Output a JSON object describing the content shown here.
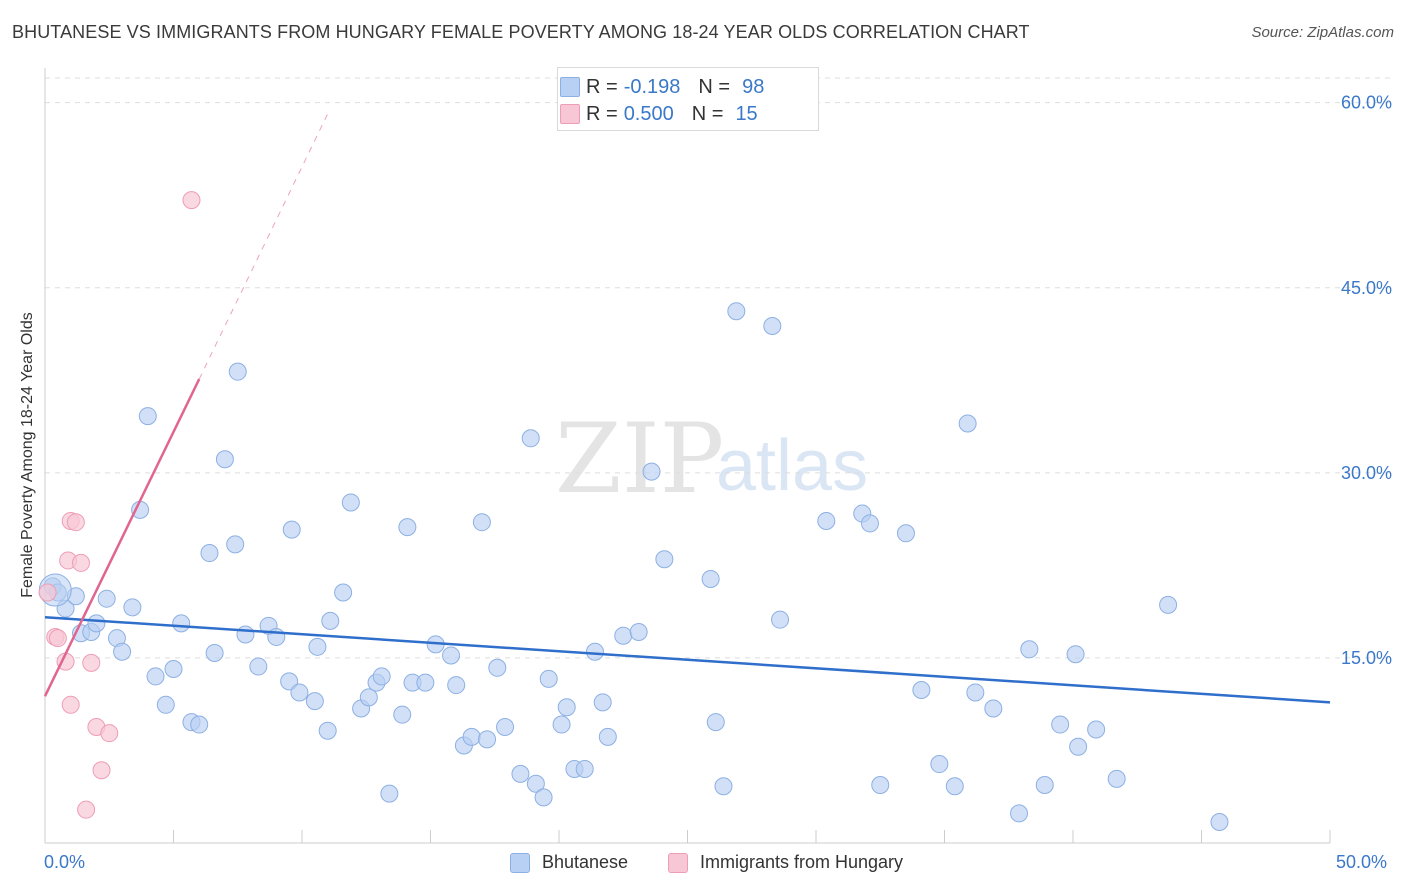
{
  "title": "BHUTANESE VS IMMIGRANTS FROM HUNGARY FEMALE POVERTY AMONG 18-24 YEAR OLDS CORRELATION CHART",
  "source": "Source: ZipAtlas.com",
  "watermark": {
    "zip": "ZIP",
    "atlas": "atlas"
  },
  "legend_top": {
    "rows": [
      {
        "r_label": "R =",
        "r_value": "-0.198",
        "n_label": "N =",
        "n_value": "98"
      },
      {
        "r_label": "R =",
        "r_value": "0.500",
        "n_label": "N =",
        "n_value": "15"
      }
    ]
  },
  "legend_bottom": {
    "series1": "Bhutanese",
    "series2": "Immigrants from Hungary"
  },
  "x_axis": {
    "min_label": "0.0%",
    "max_label": "50.0%"
  },
  "colors": {
    "blue_fill": "#b8d0f3",
    "blue_stroke": "#8db0e3",
    "blue_line": "#2f6fcb",
    "pink_fill": "#f8c7d6",
    "pink_stroke": "#ee9db6",
    "pink_line": "#e0658f",
    "tick_text": "#3a78c9",
    "grid": "#dddddd"
  },
  "chart_data": {
    "type": "scatter",
    "title": "BHUTANESE VS IMMIGRANTS FROM HUNGARY FEMALE POVERTY AMONG 18-24 YEAR OLDS CORRELATION CHART",
    "xlabel": "",
    "ylabel": "Female Poverty Among 18-24 Year Olds",
    "xlim": [
      0,
      50
    ],
    "ylim": [
      0,
      62
    ],
    "y_ticks": [
      15,
      30,
      45,
      60
    ],
    "y_tick_labels": [
      "15.0%",
      "30.0%",
      "45.0%",
      "60.0%"
    ],
    "series": [
      {
        "name": "Bhutanese",
        "r": -0.198,
        "n": 98,
        "trend": {
          "x0": 0,
          "y0": 18.3,
          "x1": 50,
          "y1": 11.4
        },
        "points": [
          [
            0.3,
            20.8
          ],
          [
            0.5,
            20.3
          ],
          [
            0.8,
            19.0
          ],
          [
            1.2,
            20.0
          ],
          [
            1.4,
            17.0
          ],
          [
            1.8,
            17.1
          ],
          [
            2.0,
            17.8
          ],
          [
            2.4,
            19.8
          ],
          [
            2.8,
            16.6
          ],
          [
            3.0,
            15.5
          ],
          [
            3.4,
            19.1
          ],
          [
            3.7,
            27.0
          ],
          [
            4.0,
            34.6
          ],
          [
            4.3,
            13.5
          ],
          [
            4.7,
            11.2
          ],
          [
            5.0,
            14.1
          ],
          [
            5.3,
            17.8
          ],
          [
            5.7,
            9.8
          ],
          [
            6.0,
            9.6
          ],
          [
            6.4,
            23.5
          ],
          [
            6.6,
            15.4
          ],
          [
            7.0,
            31.1
          ],
          [
            7.4,
            24.2
          ],
          [
            7.5,
            38.2
          ],
          [
            7.8,
            16.9
          ],
          [
            8.3,
            14.3
          ],
          [
            8.7,
            17.6
          ],
          [
            9.0,
            16.7
          ],
          [
            9.5,
            13.1
          ],
          [
            9.6,
            25.4
          ],
          [
            9.9,
            12.2
          ],
          [
            10.5,
            11.5
          ],
          [
            10.6,
            15.9
          ],
          [
            11.0,
            9.1
          ],
          [
            11.1,
            18.0
          ],
          [
            11.6,
            20.3
          ],
          [
            11.9,
            27.6
          ],
          [
            12.3,
            10.9
          ],
          [
            12.6,
            11.8
          ],
          [
            12.9,
            13.0
          ],
          [
            13.1,
            13.5
          ],
          [
            13.4,
            4.0
          ],
          [
            13.9,
            10.4
          ],
          [
            14.1,
            25.6
          ],
          [
            14.3,
            13.0
          ],
          [
            14.8,
            13.0
          ],
          [
            15.2,
            16.1
          ],
          [
            15.8,
            15.2
          ],
          [
            16.0,
            12.8
          ],
          [
            16.3,
            7.9
          ],
          [
            16.6,
            8.6
          ],
          [
            17.0,
            26.0
          ],
          [
            17.2,
            8.4
          ],
          [
            17.6,
            14.2
          ],
          [
            17.9,
            9.4
          ],
          [
            18.5,
            5.6
          ],
          [
            18.9,
            32.8
          ],
          [
            19.1,
            4.8
          ],
          [
            19.4,
            3.7
          ],
          [
            19.6,
            13.3
          ],
          [
            20.1,
            9.6
          ],
          [
            20.3,
            11.0
          ],
          [
            20.6,
            6.0
          ],
          [
            21.0,
            6.0
          ],
          [
            21.4,
            15.5
          ],
          [
            21.7,
            11.4
          ],
          [
            21.9,
            8.6
          ],
          [
            22.5,
            16.8
          ],
          [
            23.1,
            17.1
          ],
          [
            23.6,
            30.1
          ],
          [
            24.1,
            23.0
          ],
          [
            25.9,
            21.4
          ],
          [
            26.1,
            9.8
          ],
          [
            26.4,
            4.6
          ],
          [
            26.9,
            43.1
          ],
          [
            28.3,
            41.9
          ],
          [
            28.6,
            18.1
          ],
          [
            30.4,
            26.1
          ],
          [
            31.8,
            26.7
          ],
          [
            32.1,
            25.9
          ],
          [
            32.5,
            4.7
          ],
          [
            33.5,
            25.1
          ],
          [
            34.1,
            12.4
          ],
          [
            34.8,
            6.4
          ],
          [
            35.4,
            4.6
          ],
          [
            35.9,
            34.0
          ],
          [
            36.2,
            12.2
          ],
          [
            36.9,
            10.9
          ],
          [
            37.9,
            2.4
          ],
          [
            38.3,
            15.7
          ],
          [
            38.9,
            4.7
          ],
          [
            39.5,
            9.6
          ],
          [
            40.1,
            15.3
          ],
          [
            40.2,
            7.8
          ],
          [
            40.9,
            9.2
          ],
          [
            41.7,
            5.2
          ],
          [
            43.7,
            19.3
          ],
          [
            45.7,
            1.7
          ]
        ]
      },
      {
        "name": "Immigrants from Hungary",
        "r": 0.5,
        "n": 15,
        "trend": {
          "x0": 0,
          "y0": 11.9,
          "x1": 6.0,
          "y1": 37.6
        },
        "trend_dashed": {
          "x0": 6.0,
          "y0": 37.6,
          "x1": 11.0,
          "y1": 59.1
        },
        "points": [
          [
            0.1,
            20.3
          ],
          [
            0.4,
            16.7
          ],
          [
            0.5,
            16.6
          ],
          [
            0.8,
            14.7
          ],
          [
            0.9,
            22.9
          ],
          [
            1.0,
            26.1
          ],
          [
            1.0,
            11.2
          ],
          [
            1.2,
            26.0
          ],
          [
            1.4,
            22.7
          ],
          [
            1.6,
            2.7
          ],
          [
            1.8,
            14.6
          ],
          [
            2.0,
            9.4
          ],
          [
            2.2,
            5.9
          ],
          [
            2.5,
            8.9
          ],
          [
            5.7,
            52.1
          ]
        ]
      }
    ]
  }
}
